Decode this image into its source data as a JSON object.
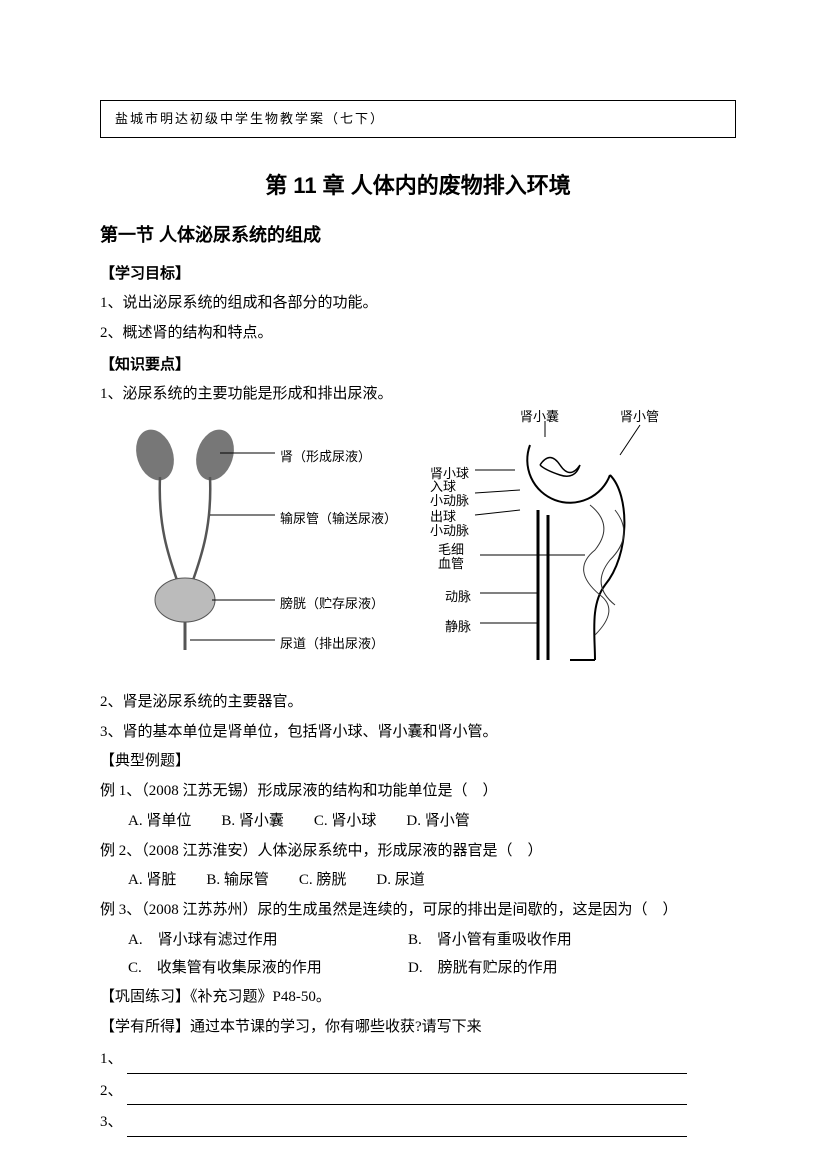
{
  "header": "盐城市明达初级中学生物教学案（七下）",
  "chapter_title": "第 11 章 人体内的废物排入环境",
  "section_title": "第一节 人体泌尿系统的组成",
  "goals_head": "【学习目标】",
  "goals": [
    "1、说出泌尿系统的组成和各部分的功能。",
    "2、概述肾的结构和特点。"
  ],
  "keypoints_head": "【知识要点】",
  "keypoint1": "1、泌尿系统的主要功能是形成和排出尿液。",
  "left_diagram": {
    "kidney": "肾（形成尿液）",
    "ureter": "输尿管（输送尿液）",
    "bladder": "膀胱（贮存尿液）",
    "urethra": "尿道（排出尿液）"
  },
  "right_diagram": {
    "capsule": "肾小囊",
    "tubule": "肾小管",
    "glomerulus": "肾小球",
    "afferent": "入球\n小动脉",
    "efferent": "出球\n小动脉",
    "capillary": "毛细\n血管",
    "artery": "动脉",
    "vein": "静脉"
  },
  "keypoint2": "2、肾是泌尿系统的主要器官。",
  "keypoint3": "3、肾的基本单位是肾单位，包括肾小球、肾小囊和肾小管。",
  "examples_head": "【典型例题】",
  "ex1": {
    "stem": "例 1、（2008 江苏无锡）形成尿液的结构和功能单位是（　）",
    "A": "A. 肾单位",
    "B": "B. 肾小囊",
    "C": "C. 肾小球",
    "D": "D. 肾小管"
  },
  "ex2": {
    "stem": "例 2、（2008 江苏淮安）人体泌尿系统中，形成尿液的器官是（　）",
    "A": "A. 肾脏",
    "B": "B. 输尿管",
    "C": "C. 膀胱",
    "D": "D. 尿道"
  },
  "ex3": {
    "stem": "例 3、（2008 江苏苏州）尿的生成虽然是连续的，可尿的排出是间歇的，这是因为（　）",
    "A": "A.　肾小球有滤过作用",
    "B": "B.　肾小管有重吸收作用",
    "C": "C.　收集管有收集尿液的作用",
    "D": "D.　膀胱有贮尿的作用"
  },
  "practice_head": "【巩固练习】《补充习题》P48-50。",
  "reflect_head": "【学有所得】通过本节课的学习，你有哪些收获?请写下来",
  "fill_labels": [
    "1、",
    "2、",
    "3、"
  ]
}
